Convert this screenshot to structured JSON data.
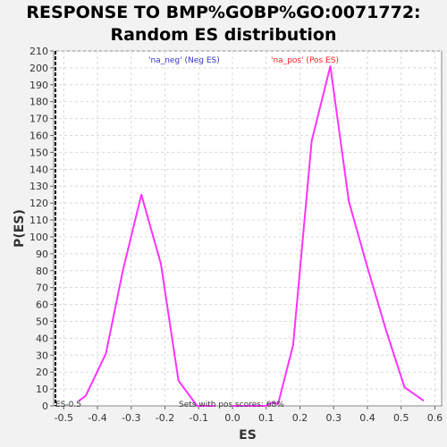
{
  "chart_data": {
    "type": "line",
    "title_lines": [
      "RESPONSE TO BMP%GOBP%GO:0071772:",
      "Random ES distribution"
    ],
    "xlabel": "ES",
    "ylabel": "P(ES)",
    "xlim": [
      -0.53,
      0.62
    ],
    "ylim": [
      0,
      210
    ],
    "xticks": [
      -0.5,
      -0.4,
      -0.3,
      -0.2,
      -0.1,
      0.0,
      0.1,
      0.2,
      0.3,
      0.4,
      0.5,
      0.6
    ],
    "xtick_labels": [
      "-0.5",
      "-0.4",
      "-0.3",
      "-0.2",
      "-0.1",
      "0.0",
      "0.1",
      "0.2",
      "0.3",
      "0.4",
      "0.5",
      "0.6"
    ],
    "yticks": [
      0,
      10,
      20,
      30,
      40,
      50,
      60,
      70,
      80,
      90,
      100,
      110,
      120,
      130,
      140,
      150,
      160,
      170,
      180,
      190,
      200,
      210
    ],
    "grid": true,
    "series": [
      {
        "name": "'na_neg' (Neg ES)",
        "color": "#ff33ff",
        "points": [
          [
            -0.455,
            3
          ],
          [
            -0.435,
            6
          ],
          [
            -0.375,
            31
          ],
          [
            -0.325,
            80
          ],
          [
            -0.27,
            125
          ],
          [
            -0.212,
            84
          ],
          [
            -0.16,
            15
          ],
          [
            -0.105,
            0
          ],
          [
            -0.05,
            0
          ]
        ]
      },
      {
        "name": "'na_pos' (Pos ES)",
        "color": "#ff33ff",
        "points": [
          [
            0.0,
            0
          ],
          [
            0.05,
            0
          ],
          [
            0.1,
            0
          ],
          [
            0.118,
            2
          ],
          [
            0.135,
            1
          ],
          [
            0.18,
            36
          ],
          [
            0.235,
            157
          ],
          [
            0.29,
            201
          ],
          [
            0.345,
            121
          ],
          [
            0.4,
            82
          ],
          [
            0.455,
            45
          ],
          [
            0.51,
            11
          ],
          [
            0.567,
            3
          ]
        ]
      }
    ],
    "legend": [
      {
        "label": "'na_neg' (Neg ES)",
        "color": "#3333cc"
      },
      {
        "label": "'na_pos' (Pos ES)",
        "color": "#ff2222"
      }
    ],
    "legend_placement": "top",
    "annotations": {
      "es_marker_label": "ES-0.5",
      "es_marker_x": -0.53,
      "sets_note": "Sets with pos scores: 68%"
    }
  }
}
